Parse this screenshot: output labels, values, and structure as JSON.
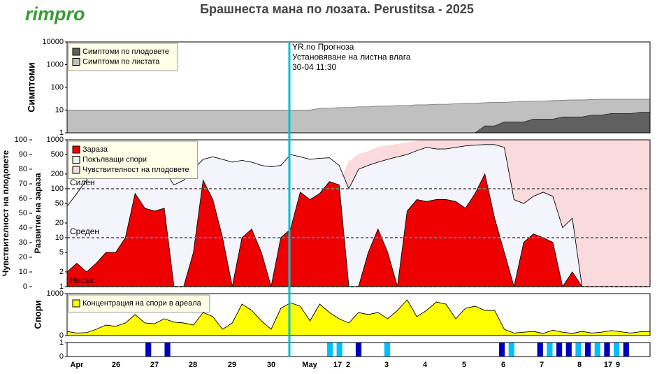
{
  "logo": "rimpro",
  "title": "Брашнеста мана по лозата.  Perustitsa - 2025",
  "chart_data": [
    {
      "type": "area",
      "ylabel": "Симптоми",
      "yscale": "log",
      "ylim": [
        1,
        10000
      ],
      "yticks": [
        1,
        10,
        100,
        1000,
        10000
      ],
      "legend": "upper left",
      "annotation": [
        "YR.no Прогноза",
        "Установяване на листна влага",
        "30-04 11:30"
      ],
      "series": [
        {
          "name": "Симптоми по плодовете",
          "color": "#606060",
          "edgecolor": "#303030",
          "values": [
            1,
            1,
            1,
            1,
            1,
            1,
            1,
            1,
            1,
            1,
            1,
            1,
            1,
            1,
            1,
            1,
            1,
            1,
            1,
            1,
            1,
            1,
            1,
            1,
            1,
            1,
            1,
            1,
            1,
            1,
            1,
            1,
            1,
            1,
            1,
            1,
            1,
            1,
            1,
            1,
            1,
            1,
            1,
            2,
            2,
            3,
            3,
            3,
            4,
            4,
            4,
            5,
            5,
            5,
            6,
            6,
            7,
            7,
            7,
            8,
            8
          ]
        },
        {
          "name": "Симптоми по листата",
          "color": "#c0c0c0",
          "edgecolor": "#808080",
          "values": [
            10,
            10,
            10,
            10,
            10,
            10,
            10,
            10,
            10,
            10,
            10,
            10,
            10,
            10,
            10,
            10,
            10,
            10,
            10,
            10,
            10,
            10,
            10,
            10,
            10,
            10,
            12,
            12,
            13,
            13,
            14,
            14,
            15,
            15,
            16,
            16,
            17,
            17,
            18,
            18,
            19,
            20,
            20,
            21,
            22,
            22,
            23,
            24,
            25,
            25,
            26,
            27,
            28,
            28,
            29,
            30,
            30,
            30,
            30,
            30,
            30
          ]
        }
      ]
    },
    {
      "type": "area",
      "ylabel": "Развитие на зараза",
      "yscale": "log",
      "ylim": [
        1,
        1000
      ],
      "yticks": [
        1,
        2,
        5,
        10,
        20,
        50,
        100,
        200,
        500,
        1000
      ],
      "y2label": "Чувствителност на плодовете",
      "y2lim": [
        0,
        100
      ],
      "y2ticks": [
        0,
        10,
        20,
        30,
        40,
        50,
        60,
        70,
        80,
        90,
        100
      ],
      "legend": "upper left",
      "thresholds": [
        {
          "label": "Силен",
          "value": 100
        },
        {
          "label": "Среден",
          "value": 10
        },
        {
          "label": "Нисък",
          "value": 1
        }
      ],
      "series": [
        {
          "name": "Зараза",
          "color": "#ee0000",
          "edgecolor": "#000000",
          "values": [
            2,
            3,
            2,
            3,
            5,
            5,
            10,
            80,
            40,
            35,
            40,
            1,
            1,
            5,
            150,
            60,
            10,
            1,
            10,
            15,
            5,
            1,
            10,
            15,
            85,
            60,
            80,
            140,
            120,
            1,
            1,
            5,
            15,
            5,
            1,
            35,
            60,
            55,
            60,
            60,
            55,
            40,
            80,
            200,
            25,
            5,
            1,
            8,
            12,
            10,
            8,
            1,
            2,
            1,
            1,
            1,
            1,
            1,
            1,
            1,
            1
          ]
        },
        {
          "name": "Покълващи спори",
          "color": "#f4f4fc",
          "edgecolor": "#000000",
          "values": [
            44,
            80,
            150,
            300,
            350,
            300,
            250,
            230,
            250,
            240,
            230,
            120,
            150,
            250,
            400,
            450,
            400,
            350,
            380,
            350,
            300,
            280,
            300,
            500,
            450,
            400,
            420,
            430,
            300,
            100,
            250,
            300,
            350,
            400,
            450,
            500,
            600,
            700,
            650,
            650,
            700,
            750,
            780,
            800,
            800,
            700,
            60,
            50,
            70,
            85,
            70,
            16,
            25,
            1,
            1,
            1,
            1,
            1,
            1,
            1,
            1
          ]
        },
        {
          "name": "Чувствителност на плодовете",
          "color": "#fadadd",
          "edgecolor": "#fadadd",
          "axis": "y2",
          "values": [
            0,
            0,
            0,
            0,
            0,
            0,
            0,
            0,
            0,
            0,
            0,
            0,
            0,
            0,
            0,
            0,
            0,
            0,
            0,
            0,
            0,
            0,
            0,
            0,
            0,
            0,
            0,
            0,
            70,
            85,
            90,
            92,
            95,
            96,
            97,
            98,
            99,
            100,
            100,
            100,
            100,
            100,
            100,
            100,
            100,
            100,
            100,
            100,
            100,
            100,
            100,
            100,
            100,
            100,
            100,
            100,
            100,
            100,
            100,
            100,
            100
          ]
        }
      ]
    },
    {
      "type": "area",
      "ylabel": "Спори",
      "ylim": [
        0,
        1000
      ],
      "yticks": [
        0,
        1000
      ],
      "legend": "upper left",
      "series": [
        {
          "name": "Концентрация на спори в ареала",
          "color": "#ffff00",
          "edgecolor": "#000000",
          "values": [
            100,
            60,
            70,
            150,
            250,
            220,
            300,
            500,
            300,
            280,
            400,
            320,
            300,
            250,
            550,
            450,
            150,
            300,
            750,
            600,
            350,
            150,
            650,
            780,
            700,
            350,
            750,
            550,
            400,
            300,
            550,
            500,
            550,
            400,
            600,
            850,
            450,
            600,
            800,
            750,
            400,
            650,
            700,
            600,
            600,
            150,
            60,
            80,
            100,
            50,
            130,
            80,
            50,
            100,
            60,
            80,
            120,
            90,
            60,
            90,
            100
          ]
        }
      ]
    },
    {
      "type": "bar",
      "ylim": [
        0,
        1
      ],
      "yticks": [
        0,
        1
      ],
      "xticks": [
        "Apr",
        "26",
        "27",
        "28",
        "29",
        "30",
        "May",
        "17",
        "2",
        "3",
        "4",
        "5",
        "6",
        "7",
        "8",
        "17",
        "9"
      ],
      "series": [
        {
          "color": "#0000bb",
          "values": [
            0,
            0,
            0,
            0,
            0,
            0,
            0,
            0,
            1,
            0,
            1,
            0,
            0,
            0,
            0,
            0,
            0,
            0,
            0,
            0,
            0,
            0,
            0,
            0,
            0,
            0,
            0,
            0,
            0,
            0,
            1,
            0,
            0,
            0,
            0,
            0,
            0,
            0,
            0,
            0,
            0,
            0,
            0,
            0,
            0,
            1,
            0,
            0,
            0,
            1,
            0,
            1,
            1,
            0,
            1,
            0,
            1,
            0,
            1,
            0,
            0
          ]
        },
        {
          "color": "#00bfff",
          "values": [
            0,
            0,
            0,
            0,
            0,
            0,
            0,
            0,
            0,
            0,
            0,
            0,
            0,
            0,
            0,
            0,
            0,
            0,
            0,
            0,
            0,
            0,
            0,
            0,
            0,
            0,
            0,
            1,
            1,
            0,
            0,
            0,
            0,
            1,
            0,
            0,
            0,
            0,
            0,
            0,
            0,
            0,
            0,
            0,
            0,
            0,
            1,
            0,
            0,
            0,
            1,
            0,
            0,
            1,
            0,
            1,
            0,
            1,
            0,
            0,
            0
          ]
        }
      ]
    }
  ]
}
